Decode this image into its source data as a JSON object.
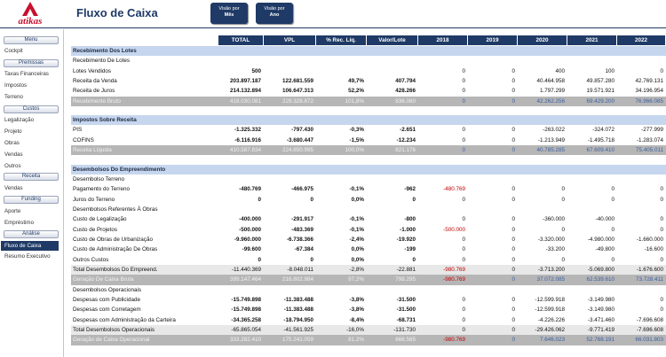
{
  "app": {
    "logo_text": "atikas",
    "title": "Fluxo de Caixa"
  },
  "view_buttons": [
    {
      "line1": "Visão por",
      "line2": "Mês"
    },
    {
      "line1": "Visão por",
      "line2": "Ano"
    }
  ],
  "sidebar": {
    "menu_label": "Menu",
    "cockpit": "Cockpit",
    "premissas_label": "Premissas",
    "taxas": "Taxas Financeiras",
    "impostos": "Impostos",
    "terreno": "Terreno",
    "custos_label": "Custos",
    "legalizacao": "Legalização",
    "projeto": "Projeto",
    "obras": "Obras",
    "vendas": "Vendas",
    "outros": "Outros",
    "receita_label": "Receita",
    "vendas2": "Vendas",
    "funding_label": "Funding",
    "aporte": "Aporte",
    "emprestimo": "Empréstimo",
    "analise_label": "Análise",
    "fluxo": "Fluxo de Caixa",
    "resumo": "Resumo Executivo"
  },
  "table": {
    "headers": [
      "TOTAL",
      "VPL",
      "% Rec. Líq.",
      "Valor/Lote",
      "2018",
      "2019",
      "2020",
      "2021",
      "2022"
    ],
    "rows": [
      {
        "type": "sec",
        "label": "Recebimento Dos Lotes",
        "v": [
          "",
          "",
          "",
          "",
          "",
          "",
          "",
          "",
          ""
        ]
      },
      {
        "type": "sub",
        "label": "Recebimento De Lotes",
        "v": [
          "",
          "",
          "",
          "",
          "",
          "",
          "",
          "",
          ""
        ]
      },
      {
        "type": "row",
        "label": "Lotes Vendidos",
        "v": [
          "500",
          "",
          "",
          "",
          "0",
          "0",
          "400",
          "100",
          "0"
        ]
      },
      {
        "type": "row",
        "label": "Receita da Venda",
        "v": [
          "203.897.187",
          "122.681.559",
          "49,7%",
          "407.794",
          "0",
          "0",
          "40.464.958",
          "49.857.280",
          "42.769.131"
        ]
      },
      {
        "type": "row",
        "label": "Receita de Juros",
        "v": [
          "214.132.894",
          "106.647.313",
          "52,2%",
          "428.266",
          "0",
          "0",
          "1.797.299",
          "19.571.921",
          "34.196.954"
        ]
      },
      {
        "type": "dark",
        "label": "Recebimento Bruto",
        "v": [
          "418.030.081",
          "229.328.872",
          "101,8%",
          "836.060",
          "0",
          "0",
          "42.262.256",
          "69.429.200",
          "76.966.085"
        ]
      },
      {
        "type": "gap"
      },
      {
        "type": "sec",
        "label": "Impostos Sobre Receita",
        "v": [
          "",
          "",
          "",
          "",
          "",
          "",
          "",
          "",
          ""
        ]
      },
      {
        "type": "row",
        "label": "PIS",
        "v": [
          "-1.325.332",
          "-797.430",
          "-0,3%",
          "-2.651",
          "0",
          "0",
          "-263.022",
          "-324.072",
          "-277.999"
        ]
      },
      {
        "type": "row",
        "label": "COFINS",
        "v": [
          "-6.116.916",
          "-3.680.447",
          "-1,5%",
          "-12.234",
          "0",
          "0",
          "-1.213.949",
          "-1.495.718",
          "-1.283.074"
        ]
      },
      {
        "type": "dark",
        "label": "Receita Líquida",
        "v": [
          "410.587.834",
          "224.850.995",
          "100,0%",
          "821.176",
          "0",
          "0",
          "40.785.285",
          "67.609.410",
          "75.405.011"
        ]
      },
      {
        "type": "gap"
      },
      {
        "type": "sec",
        "label": "Desembolsos Do Empreendimento",
        "v": [
          "",
          "",
          "",
          "",
          "",
          "",
          "",
          "",
          ""
        ]
      },
      {
        "type": "sub",
        "label": "Desembolso Terreno",
        "v": [
          "",
          "",
          "",
          "",
          "",
          "",
          "",
          "",
          ""
        ]
      },
      {
        "type": "row",
        "label": "Pagamento do Terreno",
        "v": [
          "-480.769",
          "-466.975",
          "-0,1%",
          "-962",
          "-480.769",
          "0",
          "0",
          "0",
          "0"
        ]
      },
      {
        "type": "row",
        "label": "Juros do Terreno",
        "v": [
          "0",
          "0",
          "0,0%",
          "0",
          "0",
          "0",
          "0",
          "0",
          "0"
        ]
      },
      {
        "type": "sub",
        "label": "Desembolsos Referentes À Obras",
        "v": [
          "",
          "",
          "",
          "",
          "",
          "",
          "",
          "",
          ""
        ]
      },
      {
        "type": "row",
        "label": "Custo de Legalização",
        "v": [
          "-400.000",
          "-291.917",
          "-0,1%",
          "-800",
          "0",
          "0",
          "-360.000",
          "-40.000",
          "0"
        ]
      },
      {
        "type": "row",
        "label": "Custo de Projetos",
        "v": [
          "-500.000",
          "-483.369",
          "-0,1%",
          "-1.000",
          "-500.000",
          "0",
          "0",
          "0",
          "0"
        ]
      },
      {
        "type": "row",
        "label": "Custo de Obras de Urbanização",
        "v": [
          "-9.960.000",
          "-6.738.366",
          "-2,4%",
          "-19.920",
          "0",
          "0",
          "-3.320.000",
          "-4.980.000",
          "-1.660.000"
        ]
      },
      {
        "type": "row",
        "label": "Custo de Administração De Obras",
        "v": [
          "-99.600",
          "-67.384",
          "0,0%",
          "-199",
          "0",
          "0",
          "-33.200",
          "-49.800",
          "-16.600"
        ]
      },
      {
        "type": "row",
        "label": "Outros Custos",
        "v": [
          "0",
          "0",
          "0,0%",
          "0",
          "0",
          "0",
          "0",
          "0",
          "0"
        ]
      },
      {
        "type": "total",
        "label": "Total Desembolsos Do Empreend.",
        "v": [
          "-11.440.369",
          "-8.048.011",
          "-2,8%",
          "-22.881",
          "-980.769",
          "0",
          "-3.713.200",
          "-5.069.800",
          "-1.676.600"
        ]
      },
      {
        "type": "dark",
        "label": "Geração De Caixa Bruta",
        "v": [
          "399.147.464",
          "216.802.984",
          "97,2%",
          "798.295",
          "-980.769",
          "0",
          "37.072.085",
          "62.539.610",
          "73.728.411"
        ]
      },
      {
        "type": "sub",
        "label": "Desembolsos Operacionais",
        "v": [
          "",
          "",
          "",
          "",
          "",
          "",
          "",
          "",
          ""
        ]
      },
      {
        "type": "row",
        "label": "Despesas com Publicidade",
        "v": [
          "-15.749.898",
          "-11.383.488",
          "-3,8%",
          "-31.500",
          "0",
          "0",
          "-12.599.918",
          "-3.149.980",
          "0"
        ]
      },
      {
        "type": "row",
        "label": "Despesas com Corretagem",
        "v": [
          "-15.749.898",
          "-11.383.488",
          "-3,8%",
          "-31.500",
          "0",
          "0",
          "-12.599.918",
          "-3.149.980",
          "0"
        ]
      },
      {
        "type": "row",
        "label": "Despesas com Administração da Carteira",
        "v": [
          "-34.365.258",
          "-18.794.950",
          "-8,4%",
          "-68.731",
          "0",
          "0",
          "-4.226.226",
          "-3.471.460",
          "-7.696.608"
        ]
      },
      {
        "type": "total",
        "label": "Total Desembolsos Operacionais",
        "v": [
          "-65.865.054",
          "-41.561.925",
          "-16,0%",
          "-131.730",
          "0",
          "0",
          "-29.426.062",
          "-9.771.419",
          "-7.696.608"
        ]
      },
      {
        "type": "dark",
        "label": "Geração de Caixa Operacional",
        "v": [
          "333.282.410",
          "175.241.059",
          "81,2%",
          "666.565",
          "-980.769",
          "0",
          "7.646.023",
          "52.768.191",
          "66.031.803"
        ]
      }
    ]
  }
}
